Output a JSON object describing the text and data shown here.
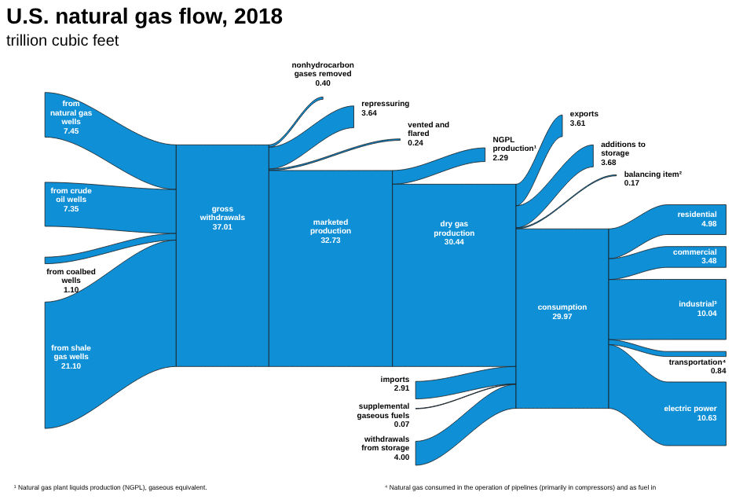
{
  "chart_data": {
    "type": "other",
    "title": "U.S. natural gas flow, 2018",
    "subtitle": "trillion cubic feet",
    "color": "#0e8fd6",
    "categories": [
      "from natural gas wells",
      "from crude oil wells",
      "from coalbed wells",
      "from shale gas wells",
      "gross withdrawals",
      "nonhydrocarbon gases removed",
      "repressuring",
      "vented and flared",
      "marketed production",
      "NGPL production¹",
      "dry gas production",
      "imports",
      "supplemental gaseous fuels",
      "withdrawals from storage",
      "exports",
      "additions to storage",
      "balancing item²",
      "consumption",
      "residential",
      "commercial",
      "industrial³",
      "transportation⁴",
      "electric power"
    ],
    "values": [
      7.45,
      7.35,
      1.1,
      21.1,
      37.01,
      0.4,
      3.64,
      0.24,
      32.73,
      2.29,
      30.44,
      2.91,
      0.07,
      4.0,
      3.61,
      3.68,
      0.17,
      29.97,
      4.98,
      3.48,
      10.04,
      0.84,
      10.63
    ],
    "value_labels": [
      "7.45",
      "7.35",
      "1.10",
      "21.10",
      "37.01",
      "0.40",
      "3.64",
      "0.24",
      "32.73",
      "2.29",
      "30.44",
      "2.91",
      "0.07",
      "4.00",
      "3.61",
      "3.68",
      "0.17",
      "29.97",
      "4.98",
      "3.48",
      "10.04",
      "0.84",
      "10.63"
    ],
    "annotations": [
      "¹ Natural gas plant liquids production (NGPL), gaseous equivalent.",
      "⁴ Natural gas consumed in the operation of pipelines (primarily in compressors) and as fuel in"
    ]
  }
}
